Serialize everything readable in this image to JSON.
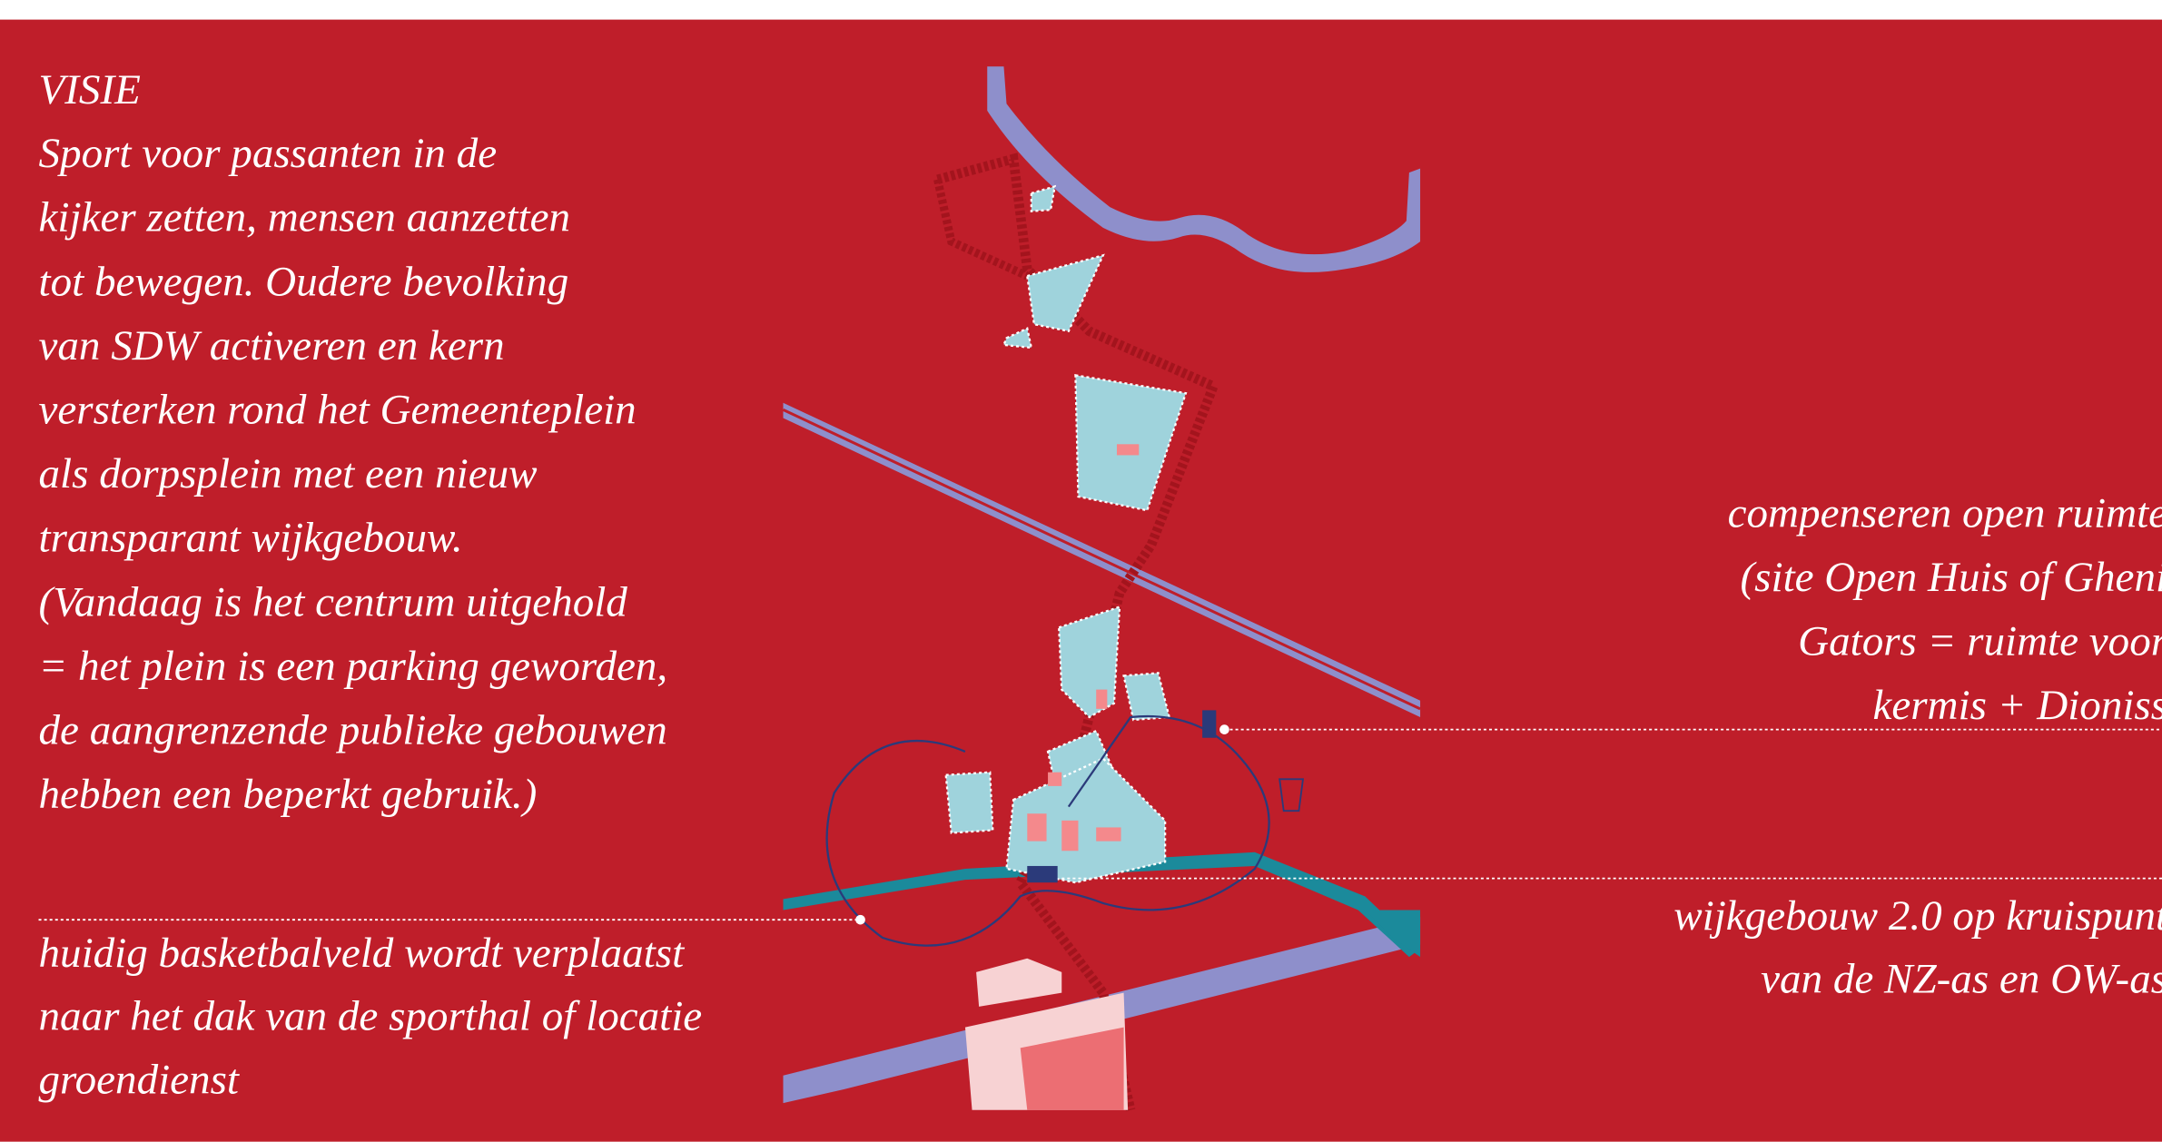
{
  "vision": {
    "title": "VISIE",
    "lines": [
      "Sport voor passanten in de",
      "kijker zetten, mensen aanzetten",
      "tot bewegen. Oudere bevolking",
      "van SDW activeren en kern",
      "versterken rond het Gemeenteplein",
      "als dorpsplein met een nieuw",
      "transparant wijkgebouw.",
      "(Vandaag is het centrum uitgehold",
      "= het plein is een parking geworden,",
      "de aangrenzende publieke gebouwen",
      "hebben een beperkt gebruik.)"
    ]
  },
  "notes": [
    {
      "lines": [
        "huidig basketbalveld wordt verplaatst",
        "naar het dak van de sporthal of locatie",
        "groendienst"
      ]
    },
    {
      "lines": [
        "compenseren open ruimte",
        "(site Open Huis of Gheni",
        "Gators = ruimte voor",
        "kermis + Dioniss"
      ]
    },
    {
      "lines": [
        "wijkgebouw 2.0 op kruispunt",
        "van de NZ-as en OW-as"
      ]
    }
  ]
}
